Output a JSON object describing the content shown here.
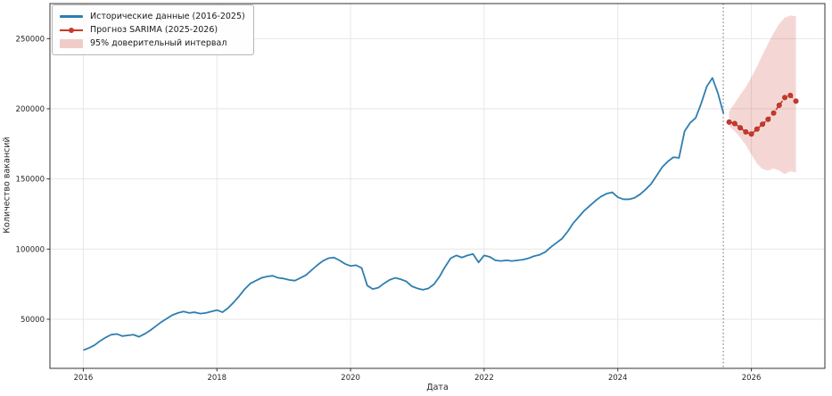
{
  "chart_data": {
    "type": "line",
    "title": "",
    "xlabel": "Дата",
    "ylabel": "Количество вакансий",
    "xlim": [
      2015.5,
      2027.1
    ],
    "ylim": [
      15000,
      275000
    ],
    "x_ticks": [
      2016,
      2018,
      2020,
      2022,
      2024,
      2026
    ],
    "y_ticks": [
      50000,
      100000,
      150000,
      200000,
      250000
    ],
    "grid": true,
    "legend_position": "upper-left",
    "forecast_divider_x": 2025.58,
    "colors": {
      "historical": "#2e7eb0",
      "forecast": "#c8382b",
      "band": "rgba(200,56,43,0.20)",
      "divider": "#808080",
      "grid": "#e6e6e6",
      "spine": "#333333",
      "tick_text": "#262626"
    },
    "series": [
      {
        "name": "Исторические данные (2016-2025)",
        "style": "solid",
        "x_start": 2016.0,
        "x_step_years": 0.0833333,
        "values": [
          28000,
          29500,
          31500,
          34500,
          37000,
          39000,
          39500,
          38000,
          38500,
          39000,
          37500,
          39500,
          42000,
          45000,
          48000,
          50500,
          53000,
          54500,
          55500,
          54500,
          55000,
          54000,
          54500,
          55500,
          56500,
          55000,
          58000,
          62000,
          66500,
          71500,
          75500,
          77500,
          79500,
          80500,
          81000,
          79500,
          79000,
          78000,
          77500,
          79500,
          81500,
          85000,
          88500,
          91500,
          93500,
          94000,
          92000,
          89500,
          88000,
          88500,
          86500,
          74000,
          71500,
          72500,
          75500,
          78000,
          79500,
          78500,
          77000,
          73500,
          72000,
          71000,
          72000,
          75000,
          80500,
          87500,
          93500,
          95500,
          94000,
          95500,
          96500,
          90500,
          95500,
          94500,
          92000,
          91500,
          92000,
          91500,
          92000,
          92500,
          93500,
          95000,
          96000,
          98000,
          101500,
          104500,
          107500,
          112500,
          118500,
          123000,
          127500,
          131000,
          134500,
          137500,
          139500,
          140500,
          137000,
          135500,
          135500,
          136500,
          139000,
          142500,
          146500,
          152500,
          158500,
          162500,
          165500,
          165000,
          184000,
          190000,
          193500,
          204000,
          216000,
          222000,
          211000,
          196500
        ]
      },
      {
        "name": "Прогноз SARIMA (2025-2026)",
        "style": "dashed-marker",
        "x_start": 2025.6667,
        "x_step_years": 0.0833333,
        "values": [
          190500,
          189500,
          186500,
          183500,
          182000,
          185500,
          189000,
          192500,
          197000,
          202500,
          208000,
          209500,
          205500
        ]
      }
    ],
    "confidence_band": {
      "name": "95% доверительный интервал",
      "upper": [
        198000,
        204000,
        210000,
        215500,
        222500,
        230000,
        238500,
        246500,
        254000,
        260500,
        265000,
        266500,
        266000
      ],
      "lower": [
        187500,
        184000,
        179500,
        174000,
        167500,
        161000,
        157000,
        156000,
        157500,
        156000,
        153500,
        155500,
        154500
      ]
    }
  }
}
